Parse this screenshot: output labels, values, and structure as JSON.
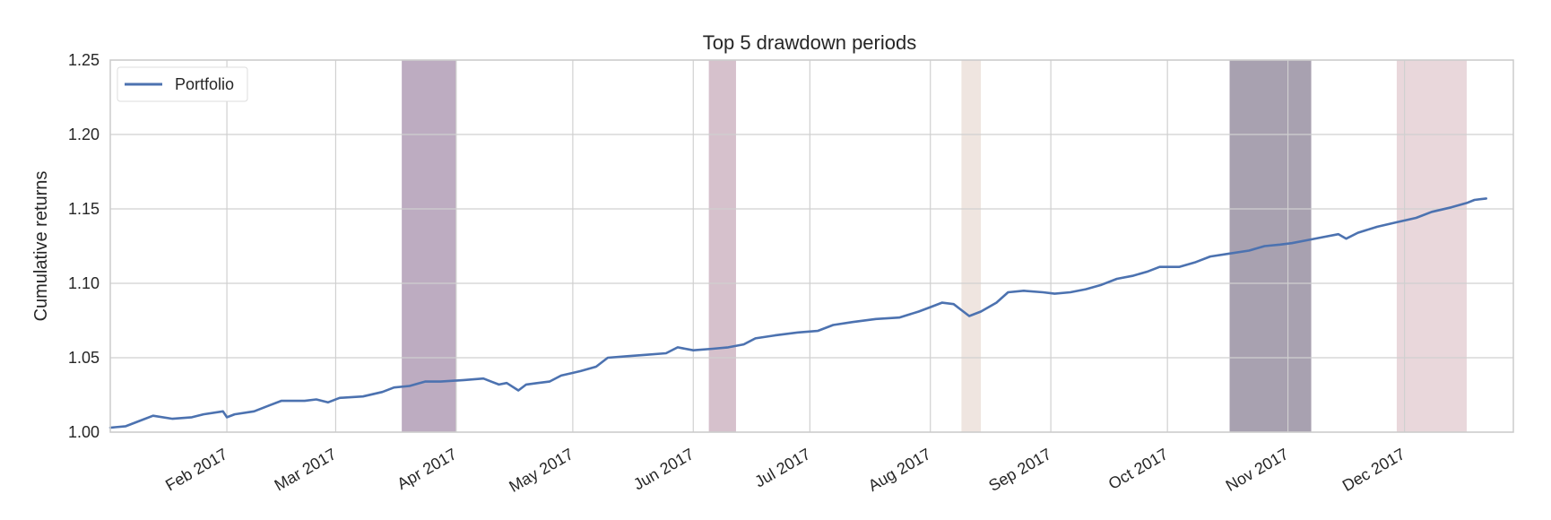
{
  "chart_data": {
    "type": "line",
    "title": "Top 5 drawdown periods",
    "xlabel": "",
    "ylabel": "Cumulative returns",
    "xlim": [
      "2017-01-02",
      "2017-12-29"
    ],
    "ylim": [
      1.0,
      1.25
    ],
    "yticks": [
      1.0,
      1.05,
      1.1,
      1.15,
      1.2,
      1.25
    ],
    "ytick_labels": [
      "1.00",
      "1.05",
      "1.10",
      "1.15",
      "1.20",
      "1.25"
    ],
    "xticks": [
      {
        "date": "2017-02-01",
        "label": "Feb 2017"
      },
      {
        "date": "2017-03-01",
        "label": "Mar 2017"
      },
      {
        "date": "2017-04-01",
        "label": "Apr 2017"
      },
      {
        "date": "2017-05-01",
        "label": "May 2017"
      },
      {
        "date": "2017-06-01",
        "label": "Jun 2017"
      },
      {
        "date": "2017-07-01",
        "label": "Jul 2017"
      },
      {
        "date": "2017-08-01",
        "label": "Aug 2017"
      },
      {
        "date": "2017-09-01",
        "label": "Sep 2017"
      },
      {
        "date": "2017-10-01",
        "label": "Oct 2017"
      },
      {
        "date": "2017-11-01",
        "label": "Nov 2017"
      },
      {
        "date": "2017-12-01",
        "label": "Dec 2017"
      }
    ],
    "grid": true,
    "legend_position": "top-left",
    "series": [
      {
        "name": "Portfolio",
        "color": "#4c72b0",
        "points": [
          [
            "2017-01-02",
            1.003
          ],
          [
            "2017-01-06",
            1.004
          ],
          [
            "2017-01-09",
            1.007
          ],
          [
            "2017-01-13",
            1.011
          ],
          [
            "2017-01-18",
            1.009
          ],
          [
            "2017-01-23",
            1.01
          ],
          [
            "2017-01-26",
            1.012
          ],
          [
            "2017-01-31",
            1.014
          ],
          [
            "2017-02-01",
            1.01
          ],
          [
            "2017-02-03",
            1.012
          ],
          [
            "2017-02-08",
            1.014
          ],
          [
            "2017-02-12",
            1.018
          ],
          [
            "2017-02-15",
            1.021
          ],
          [
            "2017-02-21",
            1.021
          ],
          [
            "2017-02-24",
            1.022
          ],
          [
            "2017-02-27",
            1.02
          ],
          [
            "2017-03-02",
            1.023
          ],
          [
            "2017-03-08",
            1.024
          ],
          [
            "2017-03-13",
            1.027
          ],
          [
            "2017-03-16",
            1.03
          ],
          [
            "2017-03-20",
            1.031
          ],
          [
            "2017-03-24",
            1.034
          ],
          [
            "2017-03-28",
            1.034
          ],
          [
            "2017-04-03",
            1.035
          ],
          [
            "2017-04-08",
            1.036
          ],
          [
            "2017-04-10",
            1.034
          ],
          [
            "2017-04-12",
            1.032
          ],
          [
            "2017-04-14",
            1.033
          ],
          [
            "2017-04-17",
            1.028
          ],
          [
            "2017-04-19",
            1.032
          ],
          [
            "2017-04-22",
            1.033
          ],
          [
            "2017-04-25",
            1.034
          ],
          [
            "2017-04-28",
            1.038
          ],
          [
            "2017-05-03",
            1.041
          ],
          [
            "2017-05-07",
            1.044
          ],
          [
            "2017-05-10",
            1.05
          ],
          [
            "2017-05-15",
            1.051
          ],
          [
            "2017-05-20",
            1.052
          ],
          [
            "2017-05-25",
            1.053
          ],
          [
            "2017-05-28",
            1.057
          ],
          [
            "2017-06-01",
            1.055
          ],
          [
            "2017-06-06",
            1.056
          ],
          [
            "2017-06-10",
            1.057
          ],
          [
            "2017-06-14",
            1.059
          ],
          [
            "2017-06-17",
            1.063
          ],
          [
            "2017-06-22",
            1.065
          ],
          [
            "2017-06-28",
            1.067
          ],
          [
            "2017-07-03",
            1.068
          ],
          [
            "2017-07-07",
            1.072
          ],
          [
            "2017-07-12",
            1.074
          ],
          [
            "2017-07-18",
            1.076
          ],
          [
            "2017-07-24",
            1.077
          ],
          [
            "2017-07-29",
            1.081
          ],
          [
            "2017-08-01",
            1.084
          ],
          [
            "2017-08-04",
            1.087
          ],
          [
            "2017-08-07",
            1.086
          ],
          [
            "2017-08-09",
            1.082
          ],
          [
            "2017-08-11",
            1.078
          ],
          [
            "2017-08-14",
            1.081
          ],
          [
            "2017-08-18",
            1.087
          ],
          [
            "2017-08-21",
            1.094
          ],
          [
            "2017-08-25",
            1.095
          ],
          [
            "2017-08-30",
            1.094
          ],
          [
            "2017-09-02",
            1.093
          ],
          [
            "2017-09-06",
            1.094
          ],
          [
            "2017-09-10",
            1.096
          ],
          [
            "2017-09-14",
            1.099
          ],
          [
            "2017-09-18",
            1.103
          ],
          [
            "2017-09-22",
            1.105
          ],
          [
            "2017-09-26",
            1.108
          ],
          [
            "2017-09-29",
            1.111
          ],
          [
            "2017-10-04",
            1.111
          ],
          [
            "2017-10-08",
            1.114
          ],
          [
            "2017-10-12",
            1.118
          ],
          [
            "2017-10-17",
            1.12
          ],
          [
            "2017-10-22",
            1.122
          ],
          [
            "2017-10-26",
            1.125
          ],
          [
            "2017-10-30",
            1.126
          ],
          [
            "2017-11-02",
            1.127
          ],
          [
            "2017-11-06",
            1.129
          ],
          [
            "2017-11-10",
            1.131
          ],
          [
            "2017-11-14",
            1.133
          ],
          [
            "2017-11-16",
            1.13
          ],
          [
            "2017-11-19",
            1.134
          ],
          [
            "2017-11-24",
            1.138
          ],
          [
            "2017-11-29",
            1.141
          ],
          [
            "2017-12-04",
            1.144
          ],
          [
            "2017-12-08",
            1.148
          ],
          [
            "2017-12-13",
            1.151
          ],
          [
            "2017-12-17",
            1.154
          ],
          [
            "2017-12-19",
            1.156
          ],
          [
            "2017-12-22",
            1.157
          ]
        ]
      }
    ],
    "drawdown_periods": [
      {
        "start": "2017-03-18",
        "end": "2017-04-01",
        "color": "#7b5a84",
        "alpha": 0.5
      },
      {
        "start": "2017-06-05",
        "end": "2017-06-12",
        "color": "#a4768e",
        "alpha": 0.45
      },
      {
        "start": "2017-08-09",
        "end": "2017-08-14",
        "color": "#dcc6bb",
        "alpha": 0.45
      },
      {
        "start": "2017-10-17",
        "end": "2017-11-07",
        "color": "#3e2f4f",
        "alpha": 0.45
      },
      {
        "start": "2017-11-29",
        "end": "2017-12-17",
        "color": "#c79ba5",
        "alpha": 0.4
      }
    ]
  }
}
